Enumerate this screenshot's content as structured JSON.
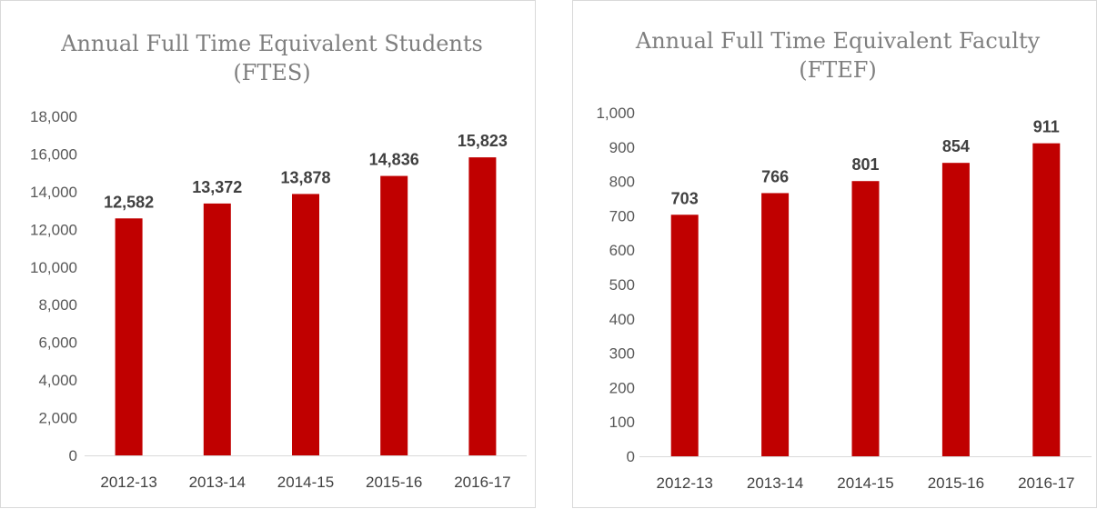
{
  "colors": {
    "bar": "#c00000",
    "axis": "#d9d9d9"
  },
  "chart_data": [
    {
      "type": "bar",
      "title": "Annual Full Time Equivalent Students",
      "subtitle": "(FTES)",
      "categories": [
        "2012-13",
        "2013-14",
        "2014-15",
        "2015-16",
        "2016-17"
      ],
      "values": [
        12582,
        13372,
        13878,
        14836,
        15823
      ],
      "data_labels": [
        "12,582",
        "13,372",
        "13,878",
        "14,836",
        "15,823"
      ],
      "ylim": [
        0,
        18000
      ],
      "yticks": [
        "0",
        "2,000",
        "4,000",
        "6,000",
        "8,000",
        "10,000",
        "12,000",
        "14,000",
        "16,000",
        "18,000"
      ],
      "grid": false,
      "xlabel": "",
      "ylabel": ""
    },
    {
      "type": "bar",
      "title": "Annual Full Time Equivalent Faculty",
      "subtitle": "(FTEF)",
      "categories": [
        "2012-13",
        "2013-14",
        "2014-15",
        "2015-16",
        "2016-17"
      ],
      "values": [
        703,
        766,
        801,
        854,
        911
      ],
      "data_labels": [
        "703",
        "766",
        "801",
        "854",
        "911"
      ],
      "ylim": [
        0,
        1000
      ],
      "yticks": [
        "0",
        "100",
        "200",
        "300",
        "400",
        "500",
        "600",
        "700",
        "800",
        "900",
        "1,000"
      ],
      "grid": false,
      "xlabel": "",
      "ylabel": ""
    }
  ]
}
